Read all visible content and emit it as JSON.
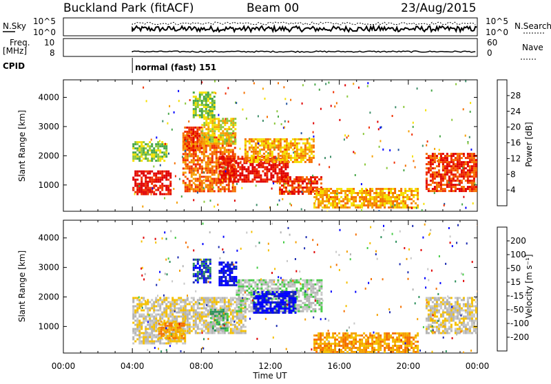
{
  "header": {
    "title": "Buckland Park (fitACF)",
    "beam": "Beam 00",
    "date": "23/Aug/2015"
  },
  "status_panels": {
    "nsky_label": "N.Sky",
    "nsky_ticks": [
      "10^5",
      "10^0"
    ],
    "nsearch_label": "N.Search",
    "nsearch_ticks": [
      "10^5",
      "10^0"
    ],
    "freq_label_1": "Freq.",
    "freq_label_2": "[MHz]",
    "freq_ticks": [
      "10",
      "8"
    ],
    "nave_label": "Nave",
    "nave_ticks": [
      "60",
      "0"
    ],
    "cpid_label": "CPID",
    "cpid_text": "normal (fast) 151"
  },
  "chart_data": [
    {
      "type": "heatmap",
      "name": "power-panel",
      "ylabel": "Slant Range [km]",
      "y_ticks": [
        "4000",
        "3000",
        "2000",
        "1000"
      ],
      "colorbar_label": "Power [dB]",
      "colorbar_ticks": [
        "28",
        "24",
        "20",
        "16",
        "12",
        "8",
        "4"
      ],
      "colors": [
        "#0000ff",
        "#2255a0",
        "#3f8f6a",
        "#4aa84a",
        "#8cc83c",
        "#f5e000",
        "#f5a000",
        "#f57000",
        "#f03000",
        "#e00000"
      ],
      "regions": [
        {
          "t": [
            4.0,
            6.2
          ],
          "r": [
            700,
            1500
          ],
          "level": 9
        },
        {
          "t": [
            4.0,
            6.0
          ],
          "r": [
            1800,
            2500
          ],
          "level": 4
        },
        {
          "t": [
            6.9,
            10.0
          ],
          "r": [
            800,
            2800
          ],
          "level": 7
        },
        {
          "t": [
            7.0,
            8.0
          ],
          "r": [
            2200,
            3000
          ],
          "level": 8
        },
        {
          "t": [
            8.0,
            10.0
          ],
          "r": [
            2400,
            3300
          ],
          "level": 5
        },
        {
          "t": [
            9.0,
            13.0
          ],
          "r": [
            1100,
            2000
          ],
          "level": 9
        },
        {
          "t": [
            10.5,
            14.5
          ],
          "r": [
            1800,
            2600
          ],
          "level": 6
        },
        {
          "t": [
            12.5,
            15.0
          ],
          "r": [
            700,
            1300
          ],
          "level": 8
        },
        {
          "t": [
            14.5,
            20.5
          ],
          "r": [
            200,
            900
          ],
          "level": 6
        },
        {
          "t": [
            21.0,
            24.0
          ],
          "r": [
            800,
            2100
          ],
          "level": 8
        },
        {
          "t": [
            7.5,
            8.8
          ],
          "r": [
            3300,
            4200
          ],
          "level": 4
        }
      ]
    },
    {
      "type": "heatmap",
      "name": "velocity-panel",
      "ylabel": "Slant Range [km]",
      "y_ticks": [
        "4000",
        "3000",
        "2000",
        "1000"
      ],
      "colorbar_label": "Velocity [m s⁻¹]",
      "colorbar_ticks": [
        "200",
        "100",
        "50",
        "15",
        "-15",
        "-50",
        "-100",
        "-200"
      ],
      "colors": [
        "#e00000",
        "#f57000",
        "#f5a000",
        "#f5c000",
        "#c8c8c8",
        "#b4b4b4",
        "#44cc44",
        "#2a8f5a",
        "#1a2ab0",
        "#0000ff"
      ],
      "regions": [
        {
          "t": [
            4.0,
            7.0
          ],
          "r": [
            400,
            2000
          ],
          "level": 4
        },
        {
          "t": [
            6.9,
            10.5
          ],
          "r": [
            800,
            2000
          ],
          "level": 4
        },
        {
          "t": [
            10.0,
            15.0
          ],
          "r": [
            1500,
            2600
          ],
          "level": 5
        },
        {
          "t": [
            11.0,
            13.5
          ],
          "r": [
            1500,
            2200
          ],
          "level": 9
        },
        {
          "t": [
            7.5,
            8.5
          ],
          "r": [
            2500,
            3300
          ],
          "level": 8
        },
        {
          "t": [
            9.0,
            10.0
          ],
          "r": [
            2400,
            3200
          ],
          "level": 9
        },
        {
          "t": [
            14.5,
            20.5
          ],
          "r": [
            100,
            800
          ],
          "level": 2
        },
        {
          "t": [
            21.0,
            24.0
          ],
          "r": [
            800,
            2000
          ],
          "level": 4
        },
        {
          "t": [
            5.5,
            7.0
          ],
          "r": [
            600,
            1200
          ],
          "level": 2
        },
        {
          "t": [
            8.5,
            9.5
          ],
          "r": [
            900,
            1600
          ],
          "level": 6
        }
      ]
    }
  ],
  "x_axis": {
    "label": "Time UT",
    "ticks": [
      "00:00",
      "04:00",
      "08:00",
      "12:00",
      "16:00",
      "20:00",
      "00:00"
    ],
    "range_hours": [
      0,
      24
    ],
    "data_start_hour": 4.0
  },
  "y_range_km": [
    100,
    4600
  ]
}
